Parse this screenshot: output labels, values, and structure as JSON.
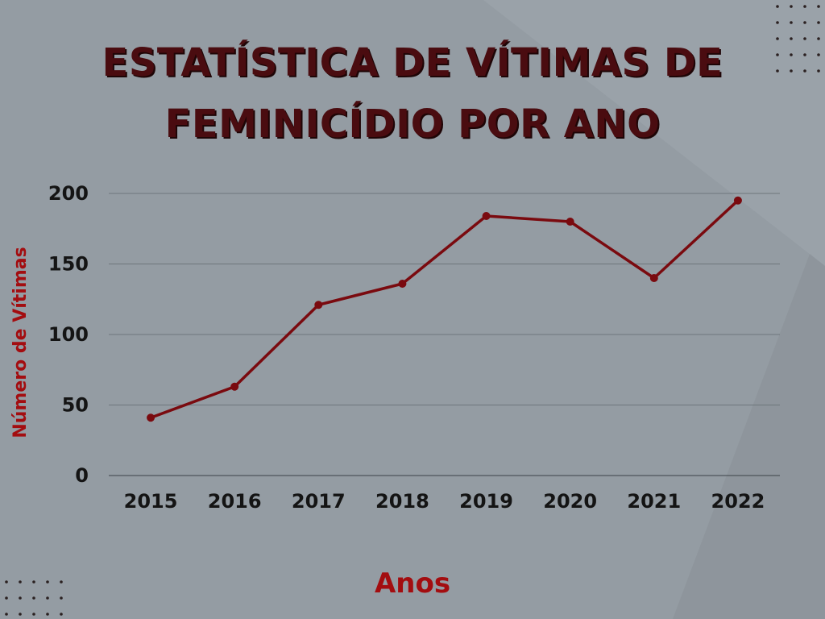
{
  "title": {
    "line1": "ESTATÍSTICA DE VÍTIMAS DE",
    "line2": "FEMINICÍDIO POR ANO"
  },
  "colors": {
    "background": "#949ca3",
    "title": "#4a0c10",
    "line": "#7a0a0f",
    "axis_label": "#a30d10",
    "grid": "#6e767c"
  },
  "chart_data": {
    "type": "line",
    "title": "ESTATÍSTICA DE VÍTIMAS DE FEMINICÍDIO POR ANO",
    "xlabel": "Anos",
    "ylabel": "Número de Vítimas",
    "categories": [
      "2015",
      "2016",
      "2017",
      "2018",
      "2019",
      "2020",
      "2021",
      "2022"
    ],
    "series": [
      {
        "values": [
          41,
          63,
          121,
          136,
          184,
          180,
          140,
          195
        ]
      }
    ],
    "ylim": [
      0,
      200
    ],
    "yticks": [
      "0",
      "50",
      "100",
      "150",
      "200"
    ],
    "grid": true,
    "markers": true
  }
}
